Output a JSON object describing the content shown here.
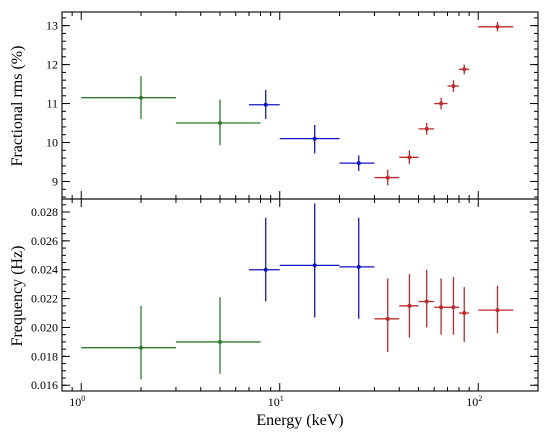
{
  "chart_data": [
    {
      "type": "scatter",
      "panel": "top",
      "ylabel": "Fractional rms (%)",
      "xlabel": "",
      "xscale": "log",
      "xlim": [
        0.8,
        200
      ],
      "ylim": [
        8.55,
        13.35
      ],
      "yticks": [
        9,
        10,
        11,
        12,
        13
      ],
      "series": [
        {
          "color": "#2e7d2e",
          "points": [
            {
              "x": 2,
              "xlo": 1,
              "xhi": 3,
              "y": 11.15,
              "ylo": 10.6,
              "yhi": 11.7
            },
            {
              "x": 5,
              "xlo": 3,
              "xhi": 8,
              "y": 10.5,
              "ylo": 9.93,
              "yhi": 11.1
            }
          ]
        },
        {
          "color": "#1515c8",
          "points": [
            {
              "x": 8.5,
              "xlo": 7,
              "xhi": 10,
              "y": 10.97,
              "ylo": 10.6,
              "yhi": 11.35
            },
            {
              "x": 15,
              "xlo": 10,
              "xhi": 20,
              "y": 10.1,
              "ylo": 9.72,
              "yhi": 10.45
            },
            {
              "x": 25,
              "xlo": 20,
              "xhi": 30,
              "y": 9.47,
              "ylo": 9.27,
              "yhi": 9.67
            }
          ]
        },
        {
          "color": "#c0282a",
          "points": [
            {
              "x": 35,
              "xlo": 30,
              "xhi": 40,
              "y": 9.1,
              "ylo": 8.9,
              "yhi": 9.3
            },
            {
              "x": 45,
              "xlo": 40,
              "xhi": 50,
              "y": 9.62,
              "ylo": 9.45,
              "yhi": 9.8
            },
            {
              "x": 55,
              "xlo": 50,
              "xhi": 60,
              "y": 10.35,
              "ylo": 10.2,
              "yhi": 10.5
            },
            {
              "x": 65,
              "xlo": 60,
              "xhi": 70,
              "y": 11.0,
              "ylo": 10.85,
              "yhi": 11.15
            },
            {
              "x": 75,
              "xlo": 70,
              "xhi": 80,
              "y": 11.45,
              "ylo": 11.3,
              "yhi": 11.6
            },
            {
              "x": 85,
              "xlo": 80,
              "xhi": 90,
              "y": 11.88,
              "ylo": 11.75,
              "yhi": 12.0
            },
            {
              "x": 125,
              "xlo": 100,
              "xhi": 150,
              "y": 12.97,
              "ylo": 12.85,
              "yhi": 13.1
            }
          ]
        }
      ]
    },
    {
      "type": "scatter",
      "panel": "bottom",
      "ylabel": "Frequency (Hz)",
      "xlabel": "Energy (keV)",
      "xscale": "log",
      "xlim": [
        0.8,
        200
      ],
      "ylim": [
        0.0156,
        0.0289
      ],
      "yticks": [
        0.016,
        0.018,
        0.02,
        0.022,
        0.024,
        0.026,
        0.028
      ],
      "ytick_labels": [
        "0.016",
        "0.018",
        "0.020",
        "0.022",
        "0.024",
        "0.026",
        "0.028"
      ],
      "series": [
        {
          "color": "#2e7d2e",
          "points": [
            {
              "x": 2,
              "xlo": 1,
              "xhi": 3,
              "y": 0.0186,
              "ylo": 0.0164,
              "yhi": 0.0215
            },
            {
              "x": 5,
              "xlo": 3,
              "xhi": 8,
              "y": 0.019,
              "ylo": 0.0168,
              "yhi": 0.0221
            }
          ]
        },
        {
          "color": "#1515c8",
          "points": [
            {
              "x": 8.5,
              "xlo": 7,
              "xhi": 10,
              "y": 0.024,
              "ylo": 0.0218,
              "yhi": 0.0276
            },
            {
              "x": 15,
              "xlo": 10,
              "xhi": 20,
              "y": 0.0243,
              "ylo": 0.0207,
              "yhi": 0.0286
            },
            {
              "x": 25,
              "xlo": 20,
              "xhi": 30,
              "y": 0.0242,
              "ylo": 0.0206,
              "yhi": 0.0276
            }
          ]
        },
        {
          "color": "#c0282a",
          "points": [
            {
              "x": 35,
              "xlo": 30,
              "xhi": 40,
              "y": 0.0206,
              "ylo": 0.0183,
              "yhi": 0.0234
            },
            {
              "x": 45,
              "xlo": 40,
              "xhi": 50,
              "y": 0.0215,
              "ylo": 0.0193,
              "yhi": 0.0237
            },
            {
              "x": 55,
              "xlo": 50,
              "xhi": 60,
              "y": 0.0218,
              "ylo": 0.02,
              "yhi": 0.024
            },
            {
              "x": 65,
              "xlo": 60,
              "xhi": 70,
              "y": 0.0214,
              "ylo": 0.0195,
              "yhi": 0.0234
            },
            {
              "x": 75,
              "xlo": 70,
              "xhi": 80,
              "y": 0.0214,
              "ylo": 0.0195,
              "yhi": 0.0235
            },
            {
              "x": 85,
              "xlo": 80,
              "xhi": 90,
              "y": 0.021,
              "ylo": 0.019,
              "yhi": 0.0228
            },
            {
              "x": 125,
              "xlo": 100,
              "xhi": 150,
              "y": 0.0212,
              "ylo": 0.0196,
              "yhi": 0.0229
            }
          ]
        }
      ],
      "xticks_major": [
        1,
        10,
        100
      ],
      "xtick_labels": [
        {
          "base": "10",
          "exp": "0"
        },
        {
          "base": "10",
          "exp": "1"
        },
        {
          "base": "10",
          "exp": "2"
        }
      ]
    }
  ]
}
